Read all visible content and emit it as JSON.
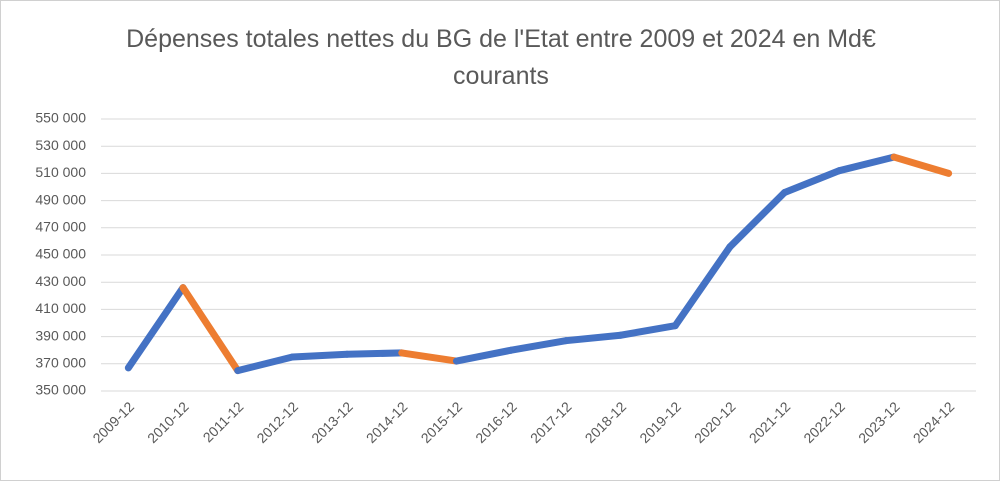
{
  "chart_data": {
    "type": "line",
    "title": "Dépenses totales nettes du BG de l'Etat entre 2009 et 2024 en Md€ courants",
    "categories": [
      "2009-12",
      "2010-12",
      "2011-12",
      "2012-12",
      "2013-12",
      "2014-12",
      "2015-12",
      "2016-12",
      "2017-12",
      "2018-12",
      "2019-12",
      "2020-12",
      "2021-12",
      "2022-12",
      "2023-12",
      "2024-12"
    ],
    "series": [
      {
        "color": "#4472c4",
        "decrease_color": "#ed7d31",
        "values": [
          367000,
          426000,
          365000,
          375000,
          377000,
          378000,
          372000,
          380000,
          387000,
          391000,
          398000,
          456000,
          496000,
          512000,
          522000,
          510000
        ]
      }
    ],
    "ylim": [
      350000,
      550000
    ],
    "yticks": [
      {
        "value": 350000,
        "label": "350 000"
      },
      {
        "value": 370000,
        "label": "370 000"
      },
      {
        "value": 390000,
        "label": "390 000"
      },
      {
        "value": 410000,
        "label": "410 000"
      },
      {
        "value": 430000,
        "label": "430 000"
      },
      {
        "value": 450000,
        "label": "450 000"
      },
      {
        "value": 470000,
        "label": "470 000"
      },
      {
        "value": 490000,
        "label": "490 000"
      },
      {
        "value": 510000,
        "label": "510 000"
      },
      {
        "value": 530000,
        "label": "530 000"
      },
      {
        "value": 550000,
        "label": "550 000"
      }
    ],
    "grid": true
  }
}
